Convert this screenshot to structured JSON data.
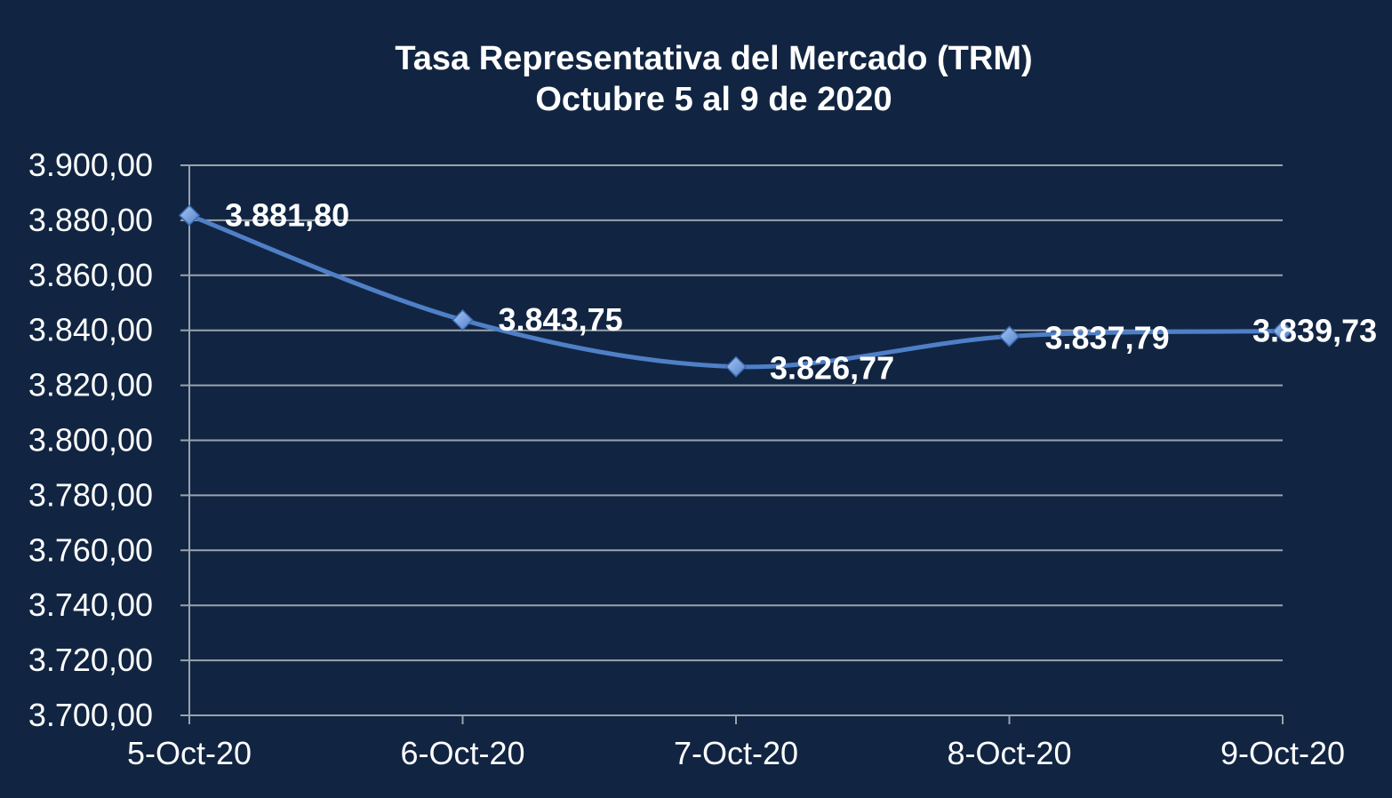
{
  "colors": {
    "background": "#112542",
    "line": "#4f7fc7",
    "marker": "#7aa6e6",
    "grid": "#9aa3ad",
    "text": "#ffffff"
  },
  "chart_data": {
    "type": "line",
    "title": "Tasa Representativa del Mercado (TRM)",
    "subtitle": "Octubre 5 al 9 de 2020",
    "categories": [
      "5-Oct-20",
      "6-Oct-20",
      "7-Oct-20",
      "8-Oct-20",
      "9-Oct-20"
    ],
    "series": [
      {
        "values": [
          3881.8,
          3843.75,
          3826.77,
          3837.79,
          3839.73
        ],
        "labels": [
          "3.881,80",
          "3.843,75",
          "3.826,77",
          "3.837,79",
          "3.839,73"
        ]
      }
    ],
    "ylim": [
      3700,
      3900
    ],
    "yticks": [
      {
        "value": 3900,
        "label": "3.900,00"
      },
      {
        "value": 3880,
        "label": "3.880,00"
      },
      {
        "value": 3860,
        "label": "3.860,00"
      },
      {
        "value": 3840,
        "label": "3.840,00"
      },
      {
        "value": 3820,
        "label": "3.820,00"
      },
      {
        "value": 3800,
        "label": "3.800,00"
      },
      {
        "value": 3780,
        "label": "3.780,00"
      },
      {
        "value": 3760,
        "label": "3.760,00"
      },
      {
        "value": 3740,
        "label": "3.740,00"
      },
      {
        "value": 3720,
        "label": "3.720,00"
      },
      {
        "value": 3700,
        "label": "3.700,00"
      }
    ],
    "grid": true,
    "smooth": true,
    "marker": "diamond"
  }
}
